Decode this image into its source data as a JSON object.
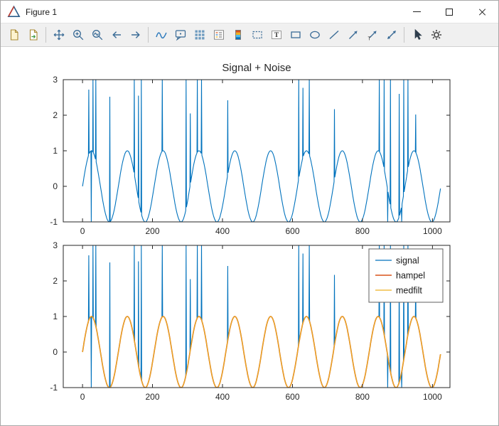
{
  "window": {
    "title": "Figure 1",
    "logo": "matlab-triangle-logo",
    "controls": [
      "minimize",
      "maximize",
      "close"
    ]
  },
  "toolbar": {
    "items": [
      {
        "type": "button",
        "icon": "open-file"
      },
      {
        "type": "button",
        "icon": "export-file"
      },
      {
        "type": "separator"
      },
      {
        "type": "button",
        "icon": "pan"
      },
      {
        "type": "button",
        "icon": "zoom-in"
      },
      {
        "type": "button",
        "icon": "zoom-curve"
      },
      {
        "type": "button",
        "icon": "back"
      },
      {
        "type": "button",
        "icon": "forward"
      },
      {
        "type": "separator"
      },
      {
        "type": "button",
        "icon": "curve"
      },
      {
        "type": "button",
        "icon": "datatip"
      },
      {
        "type": "button",
        "icon": "grid"
      },
      {
        "type": "button",
        "icon": "legend-insert"
      },
      {
        "type": "button",
        "icon": "colorbar"
      },
      {
        "type": "button",
        "icon": "selection"
      },
      {
        "type": "button",
        "icon": "text-box"
      },
      {
        "type": "button",
        "icon": "rectangle"
      },
      {
        "type": "button",
        "icon": "ellipse"
      },
      {
        "type": "button",
        "icon": "line"
      },
      {
        "type": "button",
        "icon": "arrow"
      },
      {
        "type": "button",
        "icon": "text-arrow"
      },
      {
        "type": "button",
        "icon": "double-arrow"
      },
      {
        "type": "separator"
      },
      {
        "type": "button",
        "icon": "pointer"
      },
      {
        "type": "button",
        "icon": "settings"
      }
    ]
  },
  "colors": {
    "signal_blue": "#0072BD",
    "hampel_orange": "#D95319",
    "medfilt_yellow": "#EDB120",
    "axis": "#262626"
  },
  "chart_data": [
    {
      "type": "line",
      "title": "Signal + Noise",
      "xlim": [
        -55,
        1050
      ],
      "ylim": [
        -1,
        3
      ],
      "xticks": [
        0,
        200,
        400,
        600,
        800,
        1000
      ],
      "yticks": [
        -1,
        0,
        1,
        2,
        3
      ],
      "x_points": 1024,
      "series": [
        {
          "name": "signal",
          "color": "#0072BD",
          "width": 1.1,
          "base": "sine",
          "period": 102.4,
          "amplitude": 1,
          "spikes": [
            [
              18,
              2.72
            ],
            [
              25,
              -1.3
            ],
            [
              30,
              3.45
            ],
            [
              38,
              3.2
            ],
            [
              78,
              2.52
            ],
            [
              148,
              3.35
            ],
            [
              160,
              2.55
            ],
            [
              168,
              3.1
            ],
            [
              228,
              3.25
            ],
            [
              296,
              3.5
            ],
            [
              308,
              2.05
            ],
            [
              328,
              3.3
            ],
            [
              340,
              3.15
            ],
            [
              415,
              2.42
            ],
            [
              618,
              3.4
            ],
            [
              630,
              2.77
            ],
            [
              648,
              3.2
            ],
            [
              720,
              2.17
            ],
            [
              848,
              3.3
            ],
            [
              862,
              3.25
            ],
            [
              872,
              -1.2
            ],
            [
              880,
              3.4
            ],
            [
              905,
              2.6
            ],
            [
              912,
              -1.25
            ],
            [
              918,
              3.35
            ],
            [
              930,
              3.2
            ],
            [
              952,
              2.02
            ]
          ]
        }
      ],
      "legend": null
    },
    {
      "type": "line",
      "title": "",
      "xlim": [
        -55,
        1050
      ],
      "ylim": [
        -1,
        3
      ],
      "xticks": [
        0,
        200,
        400,
        600,
        800,
        1000
      ],
      "yticks": [
        -1,
        0,
        1,
        2,
        3
      ],
      "x_points": 1024,
      "series": [
        {
          "name": "signal",
          "color": "#0072BD",
          "width": 1.1,
          "base": "sine",
          "period": 102.4,
          "amplitude": 1,
          "spikes": [
            [
              18,
              2.72
            ],
            [
              25,
              -1.3
            ],
            [
              30,
              3.45
            ],
            [
              38,
              3.2
            ],
            [
              78,
              2.52
            ],
            [
              148,
              3.35
            ],
            [
              160,
              2.55
            ],
            [
              168,
              3.1
            ],
            [
              228,
              3.25
            ],
            [
              296,
              3.5
            ],
            [
              308,
              2.05
            ],
            [
              328,
              3.3
            ],
            [
              340,
              3.15
            ],
            [
              415,
              2.42
            ],
            [
              618,
              3.4
            ],
            [
              630,
              2.77
            ],
            [
              648,
              3.2
            ],
            [
              720,
              2.17
            ],
            [
              848,
              3.3
            ],
            [
              862,
              3.25
            ],
            [
              872,
              -1.2
            ],
            [
              880,
              3.4
            ],
            [
              905,
              2.6
            ],
            [
              912,
              -1.25
            ],
            [
              918,
              3.35
            ],
            [
              930,
              3.2
            ],
            [
              952,
              2.02
            ]
          ]
        },
        {
          "name": "hampel",
          "color": "#D95319",
          "width": 1.6,
          "base": "sine",
          "period": 102.4,
          "amplitude": 1
        },
        {
          "name": "medfilt",
          "color": "#EDB120",
          "width": 1.1,
          "base": "sine",
          "period": 102.4,
          "amplitude": 1
        }
      ],
      "legend": {
        "entries": [
          {
            "label": "signal",
            "color": "#0072BD"
          },
          {
            "label": "hampel",
            "color": "#D95319"
          },
          {
            "label": "medfilt",
            "color": "#EDB120"
          }
        ]
      }
    }
  ]
}
